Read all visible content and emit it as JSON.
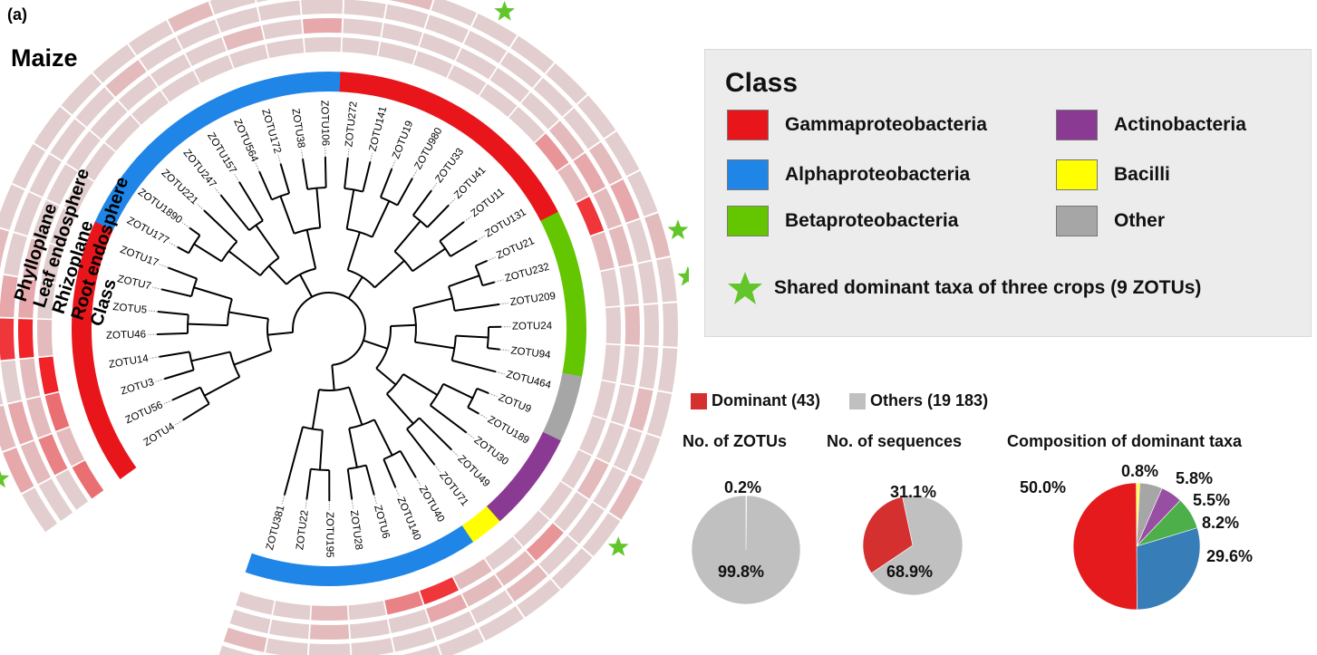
{
  "panel_label": "(a)",
  "crop_title": "Maize",
  "ring_labels": [
    "Phylloplane",
    "Leaf endosphere",
    "Rhizoplane",
    "Root endosphere",
    "Class"
  ],
  "legend": {
    "title": "Class",
    "classes": [
      {
        "name": "Gammaproteobacteria",
        "color": "#e8161b"
      },
      {
        "name": "Alphaproteobacteria",
        "color": "#1f86e8"
      },
      {
        "name": "Betaproteobacteria",
        "color": "#63c600"
      },
      {
        "name": "Actinobacteria",
        "color": "#8a3a93"
      },
      {
        "name": "Bacilli",
        "color": "#ffff00"
      },
      {
        "name": "Other",
        "color": "#a6a6a6"
      }
    ],
    "star_label": "Shared dominant taxa of three crops (9 ZOTUs)",
    "star_color": "#62c52a"
  },
  "tree": {
    "leaves": [
      {
        "name": "ZOTU4",
        "cls": 0
      },
      {
        "name": "ZOTU56",
        "cls": 0
      },
      {
        "name": "ZOTU3",
        "cls": 0
      },
      {
        "name": "ZOTU14",
        "cls": 0
      },
      {
        "name": "ZOTU46",
        "cls": 0
      },
      {
        "name": "ZOTU5",
        "cls": 0
      },
      {
        "name": "ZOTU7",
        "cls": 0
      },
      {
        "name": "ZOTU17",
        "cls": 0
      },
      {
        "name": "ZOTU177",
        "cls": 1
      },
      {
        "name": "ZOTU1890",
        "cls": 1
      },
      {
        "name": "ZOTU221",
        "cls": 1
      },
      {
        "name": "ZOTU247",
        "cls": 1
      },
      {
        "name": "ZOTU157",
        "cls": 1
      },
      {
        "name": "ZOTU564",
        "cls": 1
      },
      {
        "name": "ZOTU172",
        "cls": 1
      },
      {
        "name": "ZOTU38",
        "cls": 1
      },
      {
        "name": "ZOTU106",
        "cls": 1
      },
      {
        "name": "ZOTU272",
        "cls": 0
      },
      {
        "name": "ZOTU141",
        "cls": 0
      },
      {
        "name": "ZOTU19",
        "cls": 0
      },
      {
        "name": "ZOTU980",
        "cls": 0
      },
      {
        "name": "ZOTU33",
        "cls": 0
      },
      {
        "name": "ZOTU41",
        "cls": 0
      },
      {
        "name": "ZOTU11",
        "cls": 0
      },
      {
        "name": "ZOTU131",
        "cls": 0
      },
      {
        "name": "ZOTU21",
        "cls": 2
      },
      {
        "name": "ZOTU232",
        "cls": 2
      },
      {
        "name": "ZOTU209",
        "cls": 2
      },
      {
        "name": "ZOTU24",
        "cls": 2
      },
      {
        "name": "ZOTU94",
        "cls": 2
      },
      {
        "name": "ZOTU464",
        "cls": 5
      },
      {
        "name": "ZOTU9",
        "cls": 5
      },
      {
        "name": "ZOTU189",
        "cls": 3
      },
      {
        "name": "ZOTU30",
        "cls": 3
      },
      {
        "name": "ZOTU49",
        "cls": 3
      },
      {
        "name": "ZOTU71",
        "cls": 4
      },
      {
        "name": "ZOTU40",
        "cls": 1
      },
      {
        "name": "ZOTU140",
        "cls": 1
      },
      {
        "name": "ZOTU6",
        "cls": 1
      },
      {
        "name": "ZOTU28",
        "cls": 1
      },
      {
        "name": "ZOTU195",
        "cls": 1
      },
      {
        "name": "ZOTU22",
        "cls": 1
      },
      {
        "name": "ZOTU381",
        "cls": 1
      }
    ],
    "abundance": {
      "phylloplane": [
        0.1,
        0.3,
        0.2,
        0.1,
        0.6,
        0.2,
        0.2,
        0.1,
        0.1,
        0.1,
        0.1,
        0.1,
        0.1,
        0.2,
        0.1,
        0.1,
        0.1,
        0.1,
        0.2,
        0.1,
        0.1,
        0.1,
        0.1,
        0.1,
        0.1,
        0.1,
        0.2,
        0.1,
        0.1,
        0.1,
        0.1,
        0.1,
        0.2,
        0.1,
        0.1,
        0.1,
        0.1,
        0.1,
        0.1,
        0.1,
        0.1,
        0.2,
        0.1
      ],
      "leaf_endosphere": [
        0.1,
        0.2,
        0.3,
        0.1,
        0.9,
        0.3,
        0.1,
        0.1,
        0.1,
        0.1,
        0.1,
        0.2,
        0.1,
        0.1,
        0.1,
        0.1,
        0.1,
        0.1,
        0.1,
        0.1,
        0.1,
        0.1,
        0.1,
        0.1,
        0.2,
        0.3,
        0.1,
        0.1,
        0.1,
        0.1,
        0.2,
        0.1,
        0.1,
        0.1,
        0.1,
        0.2,
        0.1,
        0.1,
        0.1,
        0.1,
        0.1,
        0.1,
        0.2
      ],
      "rhizoplane": [
        0.1,
        0.5,
        0.2,
        0.2,
        1.0,
        0.3,
        0.2,
        0.1,
        0.1,
        0.1,
        0.1,
        0.1,
        0.1,
        0.1,
        0.2,
        0.1,
        0.3,
        0.1,
        0.1,
        0.1,
        0.1,
        0.1,
        0.1,
        0.2,
        0.3,
        0.2,
        0.2,
        0.1,
        0.2,
        0.1,
        0.1,
        0.1,
        0.2,
        0.1,
        0.4,
        0.2,
        0.2,
        0.3,
        0.1,
        0.1,
        0.2,
        0.1,
        0.1
      ],
      "root_endosphere": [
        0.6,
        0.2,
        0.6,
        1.0,
        0.2,
        0.1,
        0.1,
        0.1,
        0.1,
        0.1,
        0.1,
        0.1,
        0.1,
        0.1,
        0.1,
        0.1,
        0.1,
        0.1,
        0.1,
        0.1,
        0.1,
        0.1,
        0.1,
        0.4,
        0.2,
        0.9,
        0.2,
        0.1,
        0.1,
        0.1,
        0.1,
        0.1,
        0.1,
        0.1,
        0.1,
        0.1,
        0.2,
        0.9,
        0.5,
        0.1,
        0.2,
        0.1,
        0.1
      ]
    },
    "star_leaves": [
      1,
      2,
      3,
      4,
      6,
      20,
      26,
      27,
      33
    ]
  },
  "pies": {
    "legend": [
      {
        "label": "Dominant (43)",
        "color": "#d43030"
      },
      {
        "label": "Others (19 183)",
        "color": "#c0c0c0"
      }
    ],
    "zotus": {
      "title": "No. of ZOTUs",
      "dominant_pct": 0.2,
      "others_pct": 99.8,
      "dominant_label": "0.2%",
      "others_label": "99.8%"
    },
    "sequences": {
      "title": "No. of sequences",
      "dominant_pct": 31.1,
      "others_pct": 68.9,
      "dominant_label": "31.1%",
      "others_label": "68.9%"
    },
    "composition": {
      "title": "Composition of dominant taxa",
      "slices": [
        {
          "class": "Gammaproteobacteria",
          "pct": 50.0,
          "label": "50.0%",
          "color": "#e41a1c"
        },
        {
          "class": "Alphaproteobacteria",
          "pct": 29.6,
          "label": "29.6%",
          "color": "#377eb8"
        },
        {
          "class": "Betaproteobacteria",
          "pct": 8.2,
          "label": "8.2%",
          "color": "#4daf4a"
        },
        {
          "class": "Actinobacteria",
          "pct": 5.5,
          "label": "5.5%",
          "color": "#984ea3"
        },
        {
          "class": "Other",
          "pct": 5.8,
          "label": "5.8%",
          "color": "#a6a6a6"
        },
        {
          "class": "Bacilli",
          "pct": 0.8,
          "label": "0.8%",
          "color": "#ffff33"
        }
      ]
    }
  }
}
